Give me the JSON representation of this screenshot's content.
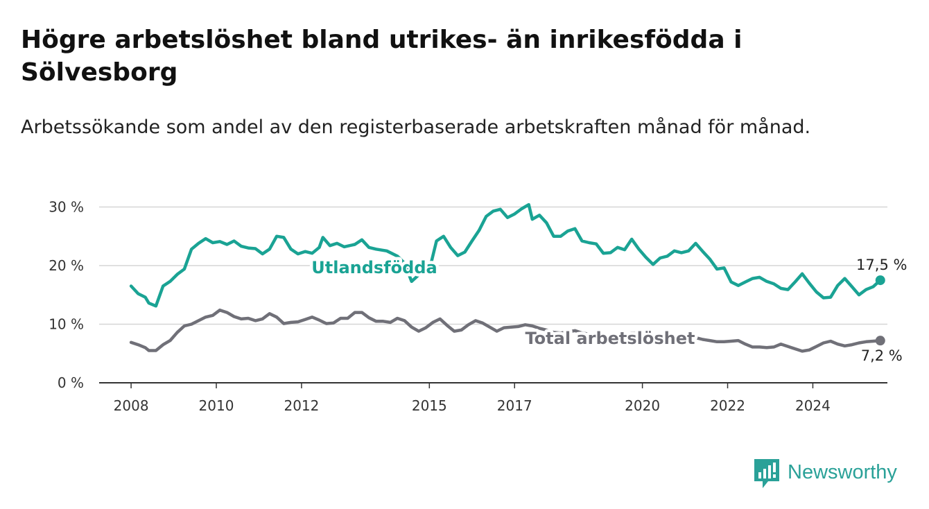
{
  "header": {
    "title": "Högre arbetslöshet bland utrikes- än inrikesfödda i Sölvesborg",
    "subtitle": "Arbetssökande som andel av den registerbaserade arbetskraften månad för månad."
  },
  "brand": {
    "name": "Newsworthy",
    "icon": "newsworthy-logo-icon",
    "color": "#2aa198"
  },
  "chart_data": {
    "type": "line",
    "title": "Högre arbetslöshet bland utrikes- än inrikesfödda i Sölvesborg",
    "subtitle": "Arbetssökande som andel av den registerbaserade arbetskraften månad för månad.",
    "xlabel": "",
    "ylabel": "",
    "x_ticks": [
      "2008",
      "2010",
      "2012",
      "2015",
      "2017",
      "2020",
      "2022",
      "2024"
    ],
    "y_ticks": [
      "0 %",
      "10 %",
      "20 %",
      "30 %"
    ],
    "ylim": [
      0,
      31
    ],
    "xlim": [
      "2007-04",
      "2025-10"
    ],
    "grid": "horizontal",
    "series": [
      {
        "name": "Utlandsfödda",
        "color": "#1aa394",
        "end_label": "17,5 %",
        "points": [
          [
            "2008-01",
            16.5
          ],
          [
            "2008-03",
            15.2
          ],
          [
            "2008-05",
            14.6
          ],
          [
            "2008-06",
            13.6
          ],
          [
            "2008-08",
            13.1
          ],
          [
            "2008-10",
            16.5
          ],
          [
            "2008-12",
            17.3
          ],
          [
            "2009-02",
            18.5
          ],
          [
            "2009-04",
            19.4
          ],
          [
            "2009-06",
            22.8
          ],
          [
            "2009-08",
            23.8
          ],
          [
            "2009-10",
            24.6
          ],
          [
            "2009-12",
            23.9
          ],
          [
            "2010-02",
            24.1
          ],
          [
            "2010-04",
            23.6
          ],
          [
            "2010-06",
            24.2
          ],
          [
            "2010-08",
            23.3
          ],
          [
            "2010-10",
            23.0
          ],
          [
            "2010-12",
            22.9
          ],
          [
            "2011-02",
            22.0
          ],
          [
            "2011-04",
            22.8
          ],
          [
            "2011-06",
            25.0
          ],
          [
            "2011-08",
            24.8
          ],
          [
            "2011-10",
            22.8
          ],
          [
            "2011-12",
            22.0
          ],
          [
            "2012-02",
            22.4
          ],
          [
            "2012-04",
            22.1
          ],
          [
            "2012-06",
            23.1
          ],
          [
            "2012-07",
            24.8
          ],
          [
            "2012-09",
            23.4
          ],
          [
            "2012-11",
            23.8
          ],
          [
            "2013-01",
            23.2
          ],
          [
            "2013-04",
            23.6
          ],
          [
            "2013-06",
            24.4
          ],
          [
            "2013-08",
            23.1
          ],
          [
            "2013-10",
            22.8
          ],
          [
            "2014-01",
            22.5
          ],
          [
            "2014-04",
            21.6
          ],
          [
            "2014-06",
            20.4
          ],
          [
            "2014-08",
            17.3
          ],
          [
            "2014-10",
            18.4
          ],
          [
            "2015-01",
            19.2
          ],
          [
            "2015-03",
            24.2
          ],
          [
            "2015-05",
            25.0
          ],
          [
            "2015-07",
            23.1
          ],
          [
            "2015-09",
            21.7
          ],
          [
            "2015-11",
            22.3
          ],
          [
            "2016-01",
            24.2
          ],
          [
            "2016-03",
            26.0
          ],
          [
            "2016-05",
            28.4
          ],
          [
            "2016-07",
            29.3
          ],
          [
            "2016-09",
            29.6
          ],
          [
            "2016-11",
            28.2
          ],
          [
            "2017-01",
            28.8
          ],
          [
            "2017-03",
            29.7
          ],
          [
            "2017-05",
            30.4
          ],
          [
            "2017-06",
            27.9
          ],
          [
            "2017-08",
            28.6
          ],
          [
            "2017-10",
            27.3
          ],
          [
            "2017-12",
            25.0
          ],
          [
            "2018-02",
            25.0
          ],
          [
            "2018-04",
            25.9
          ],
          [
            "2018-06",
            26.3
          ],
          [
            "2018-08",
            24.2
          ],
          [
            "2018-10",
            23.9
          ],
          [
            "2018-12",
            23.7
          ],
          [
            "2019-02",
            22.1
          ],
          [
            "2019-04",
            22.2
          ],
          [
            "2019-06",
            23.1
          ],
          [
            "2019-08",
            22.7
          ],
          [
            "2019-10",
            24.5
          ],
          [
            "2019-12",
            22.8
          ],
          [
            "2020-02",
            21.4
          ],
          [
            "2020-04",
            20.2
          ],
          [
            "2020-06",
            21.3
          ],
          [
            "2020-08",
            21.6
          ],
          [
            "2020-10",
            22.5
          ],
          [
            "2020-12",
            22.2
          ],
          [
            "2021-02",
            22.5
          ],
          [
            "2021-04",
            23.8
          ],
          [
            "2021-06",
            22.4
          ],
          [
            "2021-08",
            21.1
          ],
          [
            "2021-10",
            19.4
          ],
          [
            "2021-12",
            19.6
          ],
          [
            "2022-02",
            17.2
          ],
          [
            "2022-04",
            16.6
          ],
          [
            "2022-06",
            17.2
          ],
          [
            "2022-08",
            17.8
          ],
          [
            "2022-10",
            18.0
          ],
          [
            "2022-12",
            17.3
          ],
          [
            "2023-02",
            16.9
          ],
          [
            "2023-04",
            16.1
          ],
          [
            "2023-06",
            15.9
          ],
          [
            "2023-08",
            17.2
          ],
          [
            "2023-10",
            18.6
          ],
          [
            "2023-12",
            17.0
          ],
          [
            "2024-02",
            15.5
          ],
          [
            "2024-04",
            14.5
          ],
          [
            "2024-06",
            14.6
          ],
          [
            "2024-08",
            16.6
          ],
          [
            "2024-10",
            17.8
          ],
          [
            "2024-12",
            16.4
          ],
          [
            "2025-02",
            15.0
          ],
          [
            "2025-04",
            15.9
          ],
          [
            "2025-06",
            16.4
          ],
          [
            "2025-08",
            17.5
          ]
        ]
      },
      {
        "name": "Total arbetslöshet",
        "color": "#707078",
        "end_label": "7,2 %",
        "points": [
          [
            "2008-01",
            6.9
          ],
          [
            "2008-03",
            6.5
          ],
          [
            "2008-05",
            6.0
          ],
          [
            "2008-06",
            5.5
          ],
          [
            "2008-08",
            5.5
          ],
          [
            "2008-10",
            6.5
          ],
          [
            "2008-12",
            7.2
          ],
          [
            "2009-02",
            8.6
          ],
          [
            "2009-04",
            9.7
          ],
          [
            "2009-06",
            10.0
          ],
          [
            "2009-08",
            10.6
          ],
          [
            "2009-10",
            11.2
          ],
          [
            "2009-12",
            11.5
          ],
          [
            "2010-02",
            12.4
          ],
          [
            "2010-04",
            12.0
          ],
          [
            "2010-06",
            11.3
          ],
          [
            "2010-08",
            10.9
          ],
          [
            "2010-10",
            11.0
          ],
          [
            "2010-12",
            10.6
          ],
          [
            "2011-02",
            10.9
          ],
          [
            "2011-04",
            11.8
          ],
          [
            "2011-06",
            11.2
          ],
          [
            "2011-08",
            10.1
          ],
          [
            "2011-10",
            10.3
          ],
          [
            "2011-12",
            10.4
          ],
          [
            "2012-02",
            10.8
          ],
          [
            "2012-04",
            11.2
          ],
          [
            "2012-06",
            10.7
          ],
          [
            "2012-08",
            10.1
          ],
          [
            "2012-10",
            10.2
          ],
          [
            "2012-12",
            11.0
          ],
          [
            "2013-02",
            11.0
          ],
          [
            "2013-04",
            12.0
          ],
          [
            "2013-06",
            12.0
          ],
          [
            "2013-08",
            11.1
          ],
          [
            "2013-10",
            10.5
          ],
          [
            "2013-12",
            10.5
          ],
          [
            "2014-02",
            10.3
          ],
          [
            "2014-04",
            11.0
          ],
          [
            "2014-06",
            10.6
          ],
          [
            "2014-08",
            9.5
          ],
          [
            "2014-10",
            8.8
          ],
          [
            "2014-12",
            9.4
          ],
          [
            "2015-02",
            10.3
          ],
          [
            "2015-04",
            10.9
          ],
          [
            "2015-06",
            9.8
          ],
          [
            "2015-08",
            8.8
          ],
          [
            "2015-10",
            9.0
          ],
          [
            "2015-12",
            9.9
          ],
          [
            "2016-02",
            10.6
          ],
          [
            "2016-04",
            10.2
          ],
          [
            "2016-06",
            9.5
          ],
          [
            "2016-08",
            8.8
          ],
          [
            "2016-10",
            9.4
          ],
          [
            "2016-12",
            9.5
          ],
          [
            "2017-02",
            9.6
          ],
          [
            "2017-04",
            9.9
          ],
          [
            "2017-06",
            9.7
          ],
          [
            "2017-08",
            9.3
          ],
          [
            "2017-10",
            9.0
          ],
          [
            "2017-12",
            8.6
          ],
          [
            "2018-02",
            8.5
          ],
          [
            "2018-04",
            8.7
          ],
          [
            "2018-06",
            8.9
          ],
          [
            "2018-08",
            8.5
          ],
          [
            "2018-10",
            8.3
          ],
          [
            "2018-12",
            8.2
          ],
          [
            "2019-02",
            8.0
          ],
          [
            "2019-04",
            8.2
          ],
          [
            "2019-06",
            8.3
          ],
          [
            "2019-08",
            8.1
          ],
          [
            "2019-10",
            8.5
          ],
          [
            "2019-12",
            8.4
          ],
          [
            "2020-02",
            8.0
          ],
          [
            "2020-04",
            7.8
          ],
          [
            "2020-06",
            7.9
          ],
          [
            "2020-08",
            8.0
          ],
          [
            "2020-10",
            8.1
          ],
          [
            "2020-12",
            7.8
          ],
          [
            "2021-02",
            7.6
          ],
          [
            "2021-04",
            7.7
          ],
          [
            "2021-06",
            7.4
          ],
          [
            "2021-08",
            7.2
          ],
          [
            "2021-10",
            7.0
          ],
          [
            "2021-12",
            7.0
          ],
          [
            "2022-02",
            7.1
          ],
          [
            "2022-04",
            7.2
          ],
          [
            "2022-06",
            6.6
          ],
          [
            "2022-08",
            6.1
          ],
          [
            "2022-10",
            6.1
          ],
          [
            "2022-12",
            6.0
          ],
          [
            "2023-02",
            6.1
          ],
          [
            "2023-04",
            6.6
          ],
          [
            "2023-06",
            6.2
          ],
          [
            "2023-08",
            5.8
          ],
          [
            "2023-10",
            5.4
          ],
          [
            "2023-12",
            5.6
          ],
          [
            "2024-02",
            6.2
          ],
          [
            "2024-04",
            6.8
          ],
          [
            "2024-06",
            7.1
          ],
          [
            "2024-08",
            6.6
          ],
          [
            "2024-10",
            6.3
          ],
          [
            "2024-12",
            6.5
          ],
          [
            "2025-02",
            6.8
          ],
          [
            "2025-04",
            7.0
          ],
          [
            "2025-06",
            7.1
          ],
          [
            "2025-08",
            7.2
          ]
        ]
      }
    ]
  }
}
